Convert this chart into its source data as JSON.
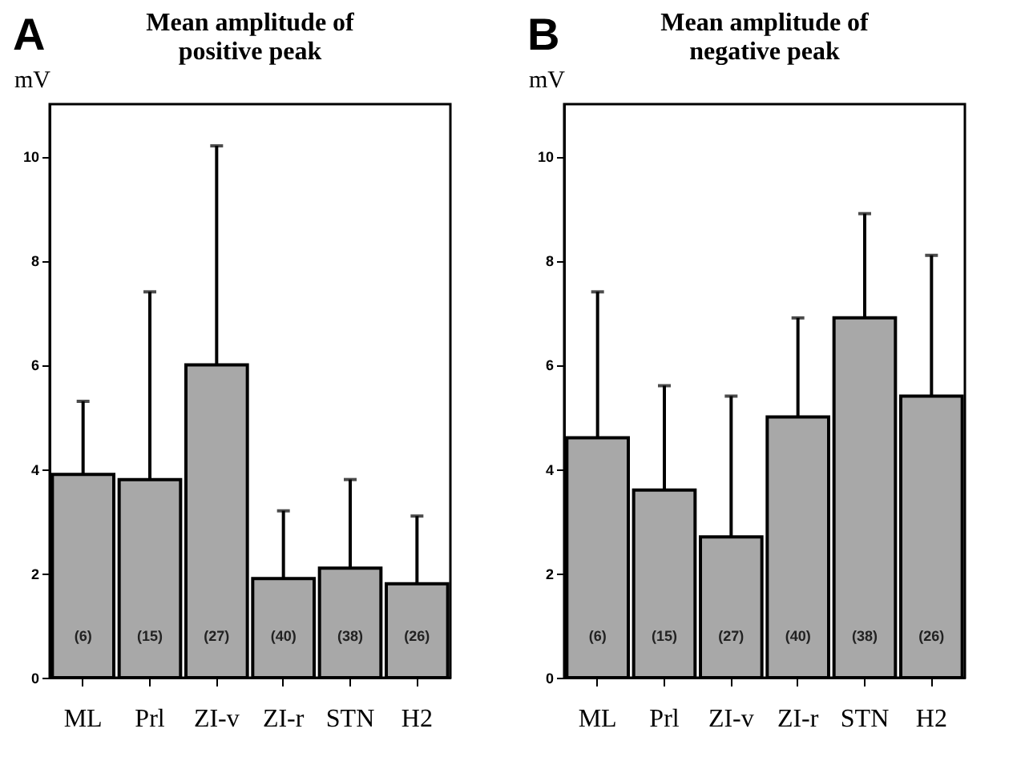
{
  "chart_data": [
    {
      "type": "bar",
      "title": "Mean amplitude of positive peak",
      "ylabel": "mV",
      "categories": [
        "ML",
        "Prl",
        "ZI-v",
        "ZI-r",
        "STN",
        "H2"
      ],
      "values": [
        3.9,
        3.8,
        6.0,
        1.9,
        2.1,
        1.8
      ],
      "color": "#a8a8a8",
      "errors": [
        [
          3.9,
          5.3
        ],
        [
          3.8,
          7.4
        ],
        [
          6.0,
          10.2
        ],
        [
          1.9,
          3.2
        ],
        [
          2.1,
          3.8
        ],
        [
          1.8,
          3.1
        ]
      ],
      "ylim": [
        0,
        11
      ],
      "yticks": [
        0,
        2,
        4,
        6,
        8,
        10
      ],
      "annotations": [
        "A",
        "(6)",
        "(15)",
        "(27)",
        "(40)",
        "(38)",
        "(26)"
      ]
    },
    {
      "type": "bar",
      "title": "Mean amplitude of negative peak",
      "ylabel": "mV",
      "categories": [
        "ML",
        "Prl",
        "ZI-v",
        "ZI-r",
        "STN",
        "H2"
      ],
      "values": [
        4.6,
        3.6,
        2.7,
        5.0,
        6.9,
        5.4
      ],
      "color": "#a8a8a8",
      "errors": [
        [
          4.6,
          7.4
        ],
        [
          3.6,
          5.6
        ],
        [
          2.7,
          5.4
        ],
        [
          5.0,
          6.9
        ],
        [
          6.9,
          8.9
        ],
        [
          5.4,
          8.1
        ]
      ],
      "ylim": [
        0,
        11
      ],
      "yticks": [
        0,
        2,
        4,
        6,
        8,
        10
      ],
      "annotations": [
        "B",
        "(6)",
        "(15)",
        "(27)",
        "(40)",
        "(38)",
        "(26)"
      ]
    }
  ]
}
